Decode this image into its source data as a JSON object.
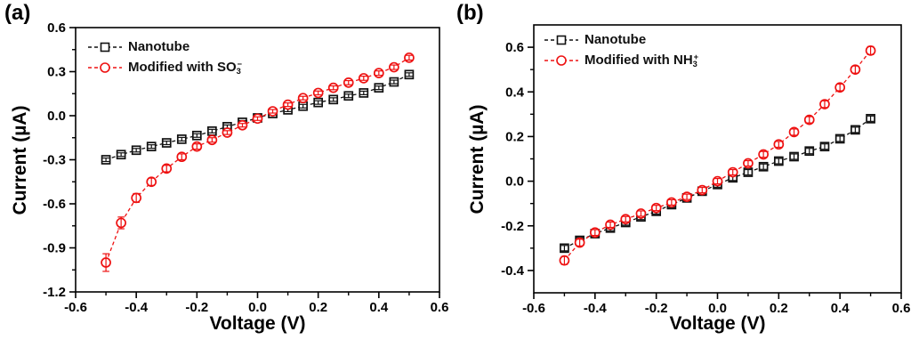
{
  "figure": {
    "background": "#ffffff",
    "axis_color": "#000000"
  },
  "chart_data": [
    {
      "id": "a",
      "panel_label": "(a)",
      "type": "line",
      "title": "",
      "xlabel": "Voltage (V)",
      "ylabel": "Current (µA)",
      "xlim": [
        -0.6,
        0.6
      ],
      "ylim": [
        -1.2,
        0.6
      ],
      "x_major_ticks": [
        -0.6,
        -0.4,
        -0.2,
        0.0,
        0.2,
        0.4,
        0.6
      ],
      "y_major_ticks": [
        -1.2,
        -0.9,
        -0.6,
        -0.3,
        0.0,
        0.3,
        0.6
      ],
      "x_minor_step": 0.1,
      "y_minor_step": 0.15,
      "grid": false,
      "legend_position": "top-left",
      "x": [
        -0.5,
        -0.45,
        -0.4,
        -0.35,
        -0.3,
        -0.25,
        -0.2,
        -0.15,
        -0.1,
        -0.05,
        0.0,
        0.05,
        0.1,
        0.15,
        0.2,
        0.25,
        0.3,
        0.35,
        0.4,
        0.45,
        0.5
      ],
      "series": [
        {
          "name": "Nanotube",
          "legend": {
            "text": "Nanotube",
            "sub": "",
            "sup": ""
          },
          "color": "#111111",
          "marker": "square",
          "values": [
            -0.3,
            -0.265,
            -0.235,
            -0.21,
            -0.185,
            -0.16,
            -0.135,
            -0.105,
            -0.075,
            -0.045,
            -0.015,
            0.015,
            0.04,
            0.065,
            0.09,
            0.11,
            0.135,
            0.155,
            0.19,
            0.23,
            0.28
          ],
          "err": [
            0.012,
            0.012,
            0.012,
            0.012,
            0.012,
            0.012,
            0.012,
            0.012,
            0.012,
            0.012,
            0.012,
            0.012,
            0.012,
            0.012,
            0.012,
            0.012,
            0.012,
            0.012,
            0.012,
            0.012,
            0.012
          ]
        },
        {
          "name": "Modified with SO3-",
          "legend": {
            "text": "Modified with SO",
            "sub": "3",
            "sup": "−"
          },
          "color": "#ee1111",
          "marker": "circle",
          "values": [
            -1.0,
            -0.73,
            -0.56,
            -0.45,
            -0.36,
            -0.28,
            -0.21,
            -0.165,
            -0.115,
            -0.065,
            -0.02,
            0.03,
            0.075,
            0.12,
            0.155,
            0.19,
            0.225,
            0.255,
            0.29,
            0.33,
            0.395
          ],
          "err": [
            0.06,
            0.04,
            0.03,
            0.025,
            0.022,
            0.02,
            0.018,
            0.015,
            0.013,
            0.012,
            0.012,
            0.012,
            0.012,
            0.012,
            0.013,
            0.013,
            0.014,
            0.014,
            0.015,
            0.015,
            0.016
          ]
        }
      ]
    },
    {
      "id": "b",
      "panel_label": "(b)",
      "type": "line",
      "title": "",
      "xlabel": "Voltage (V)",
      "ylabel": "Current (µA)",
      "xlim": [
        -0.6,
        0.6
      ],
      "ylim": [
        -0.5,
        0.7
      ],
      "x_major_ticks": [
        -0.6,
        -0.4,
        -0.2,
        0.0,
        0.2,
        0.4,
        0.6
      ],
      "y_major_ticks": [
        -0.4,
        -0.2,
        0.0,
        0.2,
        0.4,
        0.6
      ],
      "x_minor_step": 0.1,
      "y_minor_step": 0.1,
      "grid": false,
      "legend_position": "top-left",
      "x": [
        -0.5,
        -0.45,
        -0.4,
        -0.35,
        -0.3,
        -0.25,
        -0.2,
        -0.15,
        -0.1,
        -0.05,
        0.0,
        0.05,
        0.1,
        0.15,
        0.2,
        0.25,
        0.3,
        0.35,
        0.4,
        0.45,
        0.5
      ],
      "series": [
        {
          "name": "Nanotube",
          "legend": {
            "text": "Nanotube",
            "sub": "",
            "sup": ""
          },
          "color": "#111111",
          "marker": "square",
          "values": [
            -0.3,
            -0.265,
            -0.235,
            -0.21,
            -0.185,
            -0.16,
            -0.135,
            -0.105,
            -0.075,
            -0.045,
            -0.015,
            0.015,
            0.04,
            0.065,
            0.09,
            0.11,
            0.135,
            0.155,
            0.19,
            0.23,
            0.28
          ],
          "err": [
            0.012,
            0.012,
            0.012,
            0.012,
            0.012,
            0.012,
            0.012,
            0.012,
            0.012,
            0.012,
            0.012,
            0.012,
            0.012,
            0.012,
            0.012,
            0.012,
            0.012,
            0.012,
            0.012,
            0.012,
            0.012
          ]
        },
        {
          "name": "Modified with NH3+",
          "legend": {
            "text": "Modified with NH",
            "sub": "3",
            "sup": "+"
          },
          "color": "#ee1111",
          "marker": "circle",
          "values": [
            -0.355,
            -0.275,
            -0.23,
            -0.195,
            -0.17,
            -0.145,
            -0.12,
            -0.095,
            -0.07,
            -0.04,
            0.0,
            0.04,
            0.08,
            0.12,
            0.165,
            0.22,
            0.275,
            0.345,
            0.42,
            0.5,
            0.585
          ],
          "err": [
            0.018,
            0.015,
            0.013,
            0.012,
            0.012,
            0.012,
            0.012,
            0.012,
            0.012,
            0.012,
            0.012,
            0.012,
            0.012,
            0.013,
            0.013,
            0.014,
            0.014,
            0.015,
            0.015,
            0.016,
            0.018
          ]
        }
      ]
    }
  ]
}
